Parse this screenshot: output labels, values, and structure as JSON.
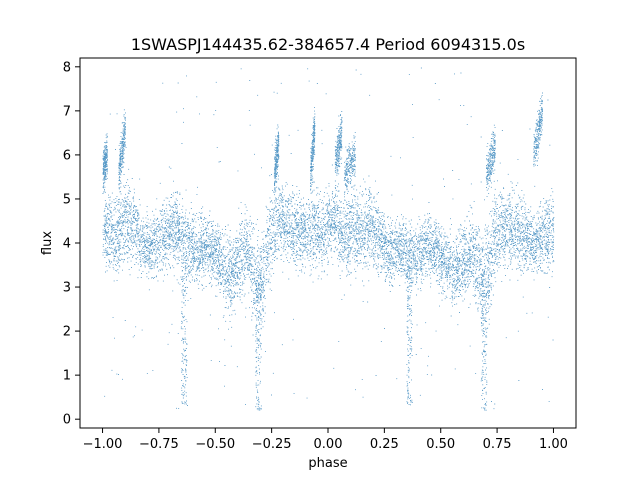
{
  "chart_data": {
    "type": "scatter",
    "title": "1SWASPJ144435.62-384657.4 Period 6094315.0s",
    "xlabel": "phase",
    "ylabel": "flux",
    "xlim": [
      -1.1,
      1.1
    ],
    "ylim": [
      -0.2,
      8.2
    ],
    "x_ticks": [
      -1.0,
      -0.75,
      -0.5,
      -0.25,
      0.0,
      0.25,
      0.5,
      0.75,
      1.0
    ],
    "x_tick_labels": [
      "−1.00",
      "−0.75",
      "−0.50",
      "−0.25",
      "0.00",
      "0.25",
      "0.50",
      "0.75",
      "1.00"
    ],
    "y_ticks": [
      0,
      1,
      2,
      3,
      4,
      5,
      6,
      7,
      8
    ],
    "y_tick_labels": [
      "0",
      "1",
      "2",
      "3",
      "4",
      "5",
      "6",
      "7",
      "8"
    ],
    "grid": false,
    "marker_color": "#1f77b4",
    "trend": {
      "x": [
        -1.0,
        -0.97,
        -0.93,
        -0.9,
        -0.86,
        -0.82,
        -0.78,
        -0.74,
        -0.7,
        -0.66,
        -0.62,
        -0.58,
        -0.54,
        -0.5,
        -0.46,
        -0.43,
        -0.4,
        -0.36,
        -0.32,
        -0.29,
        -0.26,
        -0.22,
        -0.18,
        -0.14,
        -0.1,
        -0.06,
        -0.02,
        0.0,
        0.03,
        0.07,
        0.11,
        0.15,
        0.19,
        0.23,
        0.27,
        0.31,
        0.35,
        0.39,
        0.43,
        0.47,
        0.5,
        0.54,
        0.57,
        0.6,
        0.64,
        0.68,
        0.71,
        0.74,
        0.78,
        0.82,
        0.86,
        0.9,
        0.94,
        0.97,
        1.0
      ],
      "y": [
        4.2,
        4.3,
        4.1,
        4.5,
        4.3,
        4.0,
        3.9,
        4.1,
        4.3,
        4.2,
        3.9,
        3.8,
        3.9,
        3.8,
        3.4,
        3.2,
        3.6,
        3.9,
        3.0,
        3.2,
        4.2,
        4.5,
        4.4,
        4.3,
        4.2,
        4.3,
        4.2,
        4.4,
        4.5,
        4.1,
        4.3,
        4.2,
        4.4,
        4.1,
        3.8,
        3.9,
        3.7,
        3.7,
        3.9,
        3.9,
        3.7,
        3.5,
        3.3,
        3.6,
        3.8,
        3.1,
        3.3,
        4.2,
        4.4,
        4.3,
        4.2,
        4.0,
        4.1,
        4.2,
        4.3
      ],
      "spread": [
        0.5,
        0.7,
        0.6,
        0.7,
        0.6,
        0.5,
        0.5,
        0.6,
        0.6,
        0.6,
        0.6,
        0.5,
        0.5,
        0.5,
        0.6,
        0.7,
        0.6,
        0.6,
        0.8,
        0.8,
        0.7,
        0.6,
        0.6,
        0.6,
        0.5,
        0.6,
        0.6,
        0.6,
        0.6,
        0.6,
        0.6,
        0.6,
        0.6,
        0.6,
        0.5,
        0.5,
        0.5,
        0.5,
        0.5,
        0.5,
        0.5,
        0.5,
        0.6,
        0.6,
        0.6,
        0.7,
        0.8,
        0.7,
        0.6,
        0.6,
        0.6,
        0.5,
        0.5,
        0.6,
        0.6
      ]
    },
    "high_branches": [
      {
        "x": [
          -1.0,
          -0.98
        ],
        "y": [
          5.6,
          6.0
        ]
      },
      {
        "x": [
          -0.93,
          -0.9
        ],
        "y": [
          5.6,
          6.6
        ]
      },
      {
        "x": [
          -0.24,
          -0.22
        ],
        "y": [
          5.5,
          6.3
        ]
      },
      {
        "x": [
          -0.08,
          -0.06
        ],
        "y": [
          5.5,
          6.6
        ]
      },
      {
        "x": [
          0.03,
          0.06
        ],
        "y": [
          5.8,
          6.5
        ]
      },
      {
        "x": [
          0.07,
          0.12
        ],
        "y": [
          5.5,
          6.0
        ]
      },
      {
        "x": [
          0.7,
          0.74
        ],
        "y": [
          5.5,
          6.2
        ]
      },
      {
        "x": [
          0.91,
          0.95
        ],
        "y": [
          6.0,
          7.0
        ]
      }
    ],
    "dips": [
      {
        "x": -0.64,
        "min_y": 0.3
      },
      {
        "x": -0.31,
        "min_y": 0.2
      },
      {
        "x": 0.36,
        "min_y": 0.3
      },
      {
        "x": 0.69,
        "min_y": 0.2
      }
    ],
    "n_points": 9000
  }
}
